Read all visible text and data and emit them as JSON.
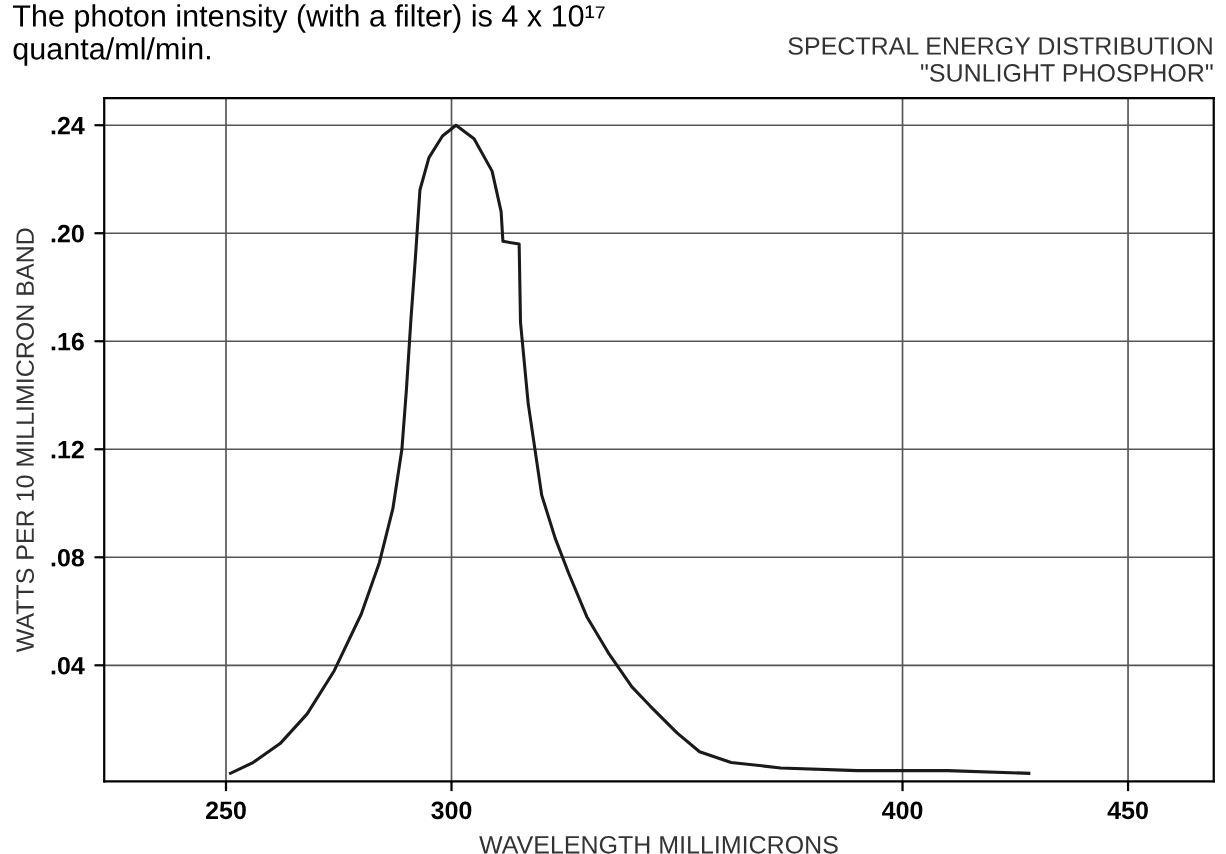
{
  "chart_data": {
    "type": "line",
    "title": "SPECTRAL ENERGY DISTRIBUTION\n\"SUNLIGHT PHOSPHOR\"",
    "xlabel": "WAVELENGTH MILLIMICRONS",
    "ylabel": "WATTS PER 10 MILLIMICRON BAND",
    "annotations": [
      "The photon intensity (with a filter) is 4 x 10¹⁷\nquanta/ml/min."
    ],
    "series": [
      {
        "color": "#1a1a1a",
        "x": [
          251,
          256,
          262,
          268,
          274,
          280,
          284,
          287,
          289,
          290,
          291,
          292,
          293,
          295,
          298,
          301,
          305,
          309,
          311,
          311.4,
          315,
          315.3,
          317,
          320,
          323,
          326,
          330,
          335,
          340,
          344,
          350,
          355,
          362,
          373,
          390,
          410,
          428
        ],
        "values": [
          0,
          0.004,
          0.011,
          0.022,
          0.038,
          0.059,
          0.078,
          0.098,
          0.12,
          0.142,
          0.168,
          0.191,
          0.216,
          0.228,
          0.236,
          0.24,
          0.235,
          0.223,
          0.208,
          0.197,
          0.196,
          0.167,
          0.137,
          0.103,
          0.087,
          0.074,
          0.058,
          0.044,
          0.032,
          0.025,
          0.015,
          0.008,
          0.004,
          0.002,
          0.001,
          0.001,
          0
        ]
      }
    ],
    "xlim": [
      223,
      469
    ],
    "ylim": [
      -0.003,
      0.25
    ],
    "xticks": [
      250,
      300,
      400,
      450
    ],
    "yticks": [
      {
        "value": 0.04,
        "label": ".04"
      },
      {
        "value": 0.08,
        "label": ".08"
      },
      {
        "value": 0.12,
        "label": ".12"
      },
      {
        "value": 0.16,
        "label": ".16"
      },
      {
        "value": 0.2,
        "label": ".20"
      },
      {
        "value": 0.24,
        "label": ".24"
      }
    ],
    "grid": true,
    "marker": "none",
    "line_style": "solid",
    "legend": false
  }
}
